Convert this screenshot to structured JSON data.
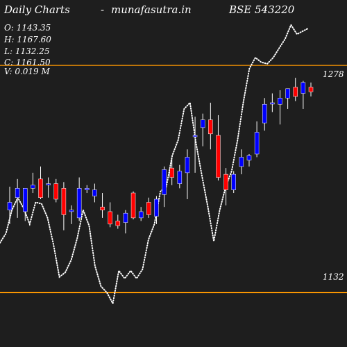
{
  "header": {
    "title": "Daily Charts",
    "separator": "-",
    "site": "munafasutra.in",
    "symbol": "BSE 543220"
  },
  "ohlc": {
    "open": "O: 1143.35",
    "high": "H: 1167.60",
    "low": "L: 1132.25",
    "close": "C: 1161.50",
    "volume": "V: 0.019 M"
  },
  "chart_data": {
    "type": "candlestick",
    "ylim": [
      1097,
      1320
    ],
    "levels": [
      {
        "value": 1278,
        "label": "1278"
      },
      {
        "value": 1132,
        "label": "1132"
      }
    ],
    "colors": {
      "up": "#0000ff",
      "down": "#ff0000",
      "wick": "#ffffff",
      "level": "#ff9900",
      "overlay": "#ffffff",
      "background": "#1e1e1e"
    },
    "candles": [
      {
        "o": 1185,
        "h": 1200,
        "l": 1176,
        "c": 1190
      },
      {
        "o": 1193,
        "h": 1205,
        "l": 1180,
        "c": 1199
      },
      {
        "o": 1184,
        "h": 1198,
        "l": 1178,
        "c": 1199
      },
      {
        "o": 1199,
        "h": 1209,
        "l": 1196,
        "c": 1201
      },
      {
        "o": 1205,
        "h": 1213,
        "l": 1192,
        "c": 1193
      },
      {
        "o": 1202,
        "h": 1206,
        "l": 1193,
        "c": 1202
      },
      {
        "o": 1202,
        "h": 1205,
        "l": 1190,
        "c": 1192
      },
      {
        "o": 1199,
        "h": 1203,
        "l": 1172,
        "c": 1182
      },
      {
        "o": 1184,
        "h": 1188,
        "l": 1176,
        "c": 1185
      },
      {
        "o": 1180,
        "h": 1206,
        "l": 1178,
        "c": 1199
      },
      {
        "o": 1198,
        "h": 1201,
        "l": 1196,
        "c": 1199
      },
      {
        "o": 1194,
        "h": 1202,
        "l": 1190,
        "c": 1198
      },
      {
        "o": 1187,
        "h": 1196,
        "l": 1180,
        "c": 1185
      },
      {
        "o": 1184,
        "h": 1190,
        "l": 1174,
        "c": 1176
      },
      {
        "o": 1178,
        "h": 1182,
        "l": 1173,
        "c": 1175
      },
      {
        "o": 1177,
        "h": 1185,
        "l": 1170,
        "c": 1183
      },
      {
        "o": 1196,
        "h": 1197,
        "l": 1179,
        "c": 1180
      },
      {
        "o": 1180,
        "h": 1187,
        "l": 1178,
        "c": 1184
      },
      {
        "o": 1190,
        "h": 1193,
        "l": 1180,
        "c": 1182
      },
      {
        "o": 1181,
        "h": 1194,
        "l": 1176,
        "c": 1192
      },
      {
        "o": 1195,
        "h": 1213,
        "l": 1187,
        "c": 1211
      },
      {
        "o": 1212,
        "h": 1218,
        "l": 1201,
        "c": 1206
      },
      {
        "o": 1202,
        "h": 1214,
        "l": 1199,
        "c": 1210
      },
      {
        "o": 1209,
        "h": 1224,
        "l": 1192,
        "c": 1219
      },
      {
        "o": 1233,
        "h": 1245,
        "l": 1209,
        "c": 1233
      },
      {
        "o": 1238,
        "h": 1247,
        "l": 1226,
        "c": 1243
      },
      {
        "o": 1243,
        "h": 1254,
        "l": 1224,
        "c": 1234
      },
      {
        "o": 1233,
        "h": 1246,
        "l": 1204,
        "c": 1206
      },
      {
        "o": 1208,
        "h": 1212,
        "l": 1188,
        "c": 1198
      },
      {
        "o": 1198,
        "h": 1210,
        "l": 1196,
        "c": 1208
      },
      {
        "o": 1213,
        "h": 1224,
        "l": 1208,
        "c": 1219
      },
      {
        "o": 1217,
        "h": 1221,
        "l": 1213,
        "c": 1220
      },
      {
        "o": 1221,
        "h": 1242,
        "l": 1219,
        "c": 1235
      },
      {
        "o": 1241,
        "h": 1257,
        "l": 1236,
        "c": 1253
      },
      {
        "o": 1254,
        "h": 1260,
        "l": 1248,
        "c": 1254
      },
      {
        "o": 1253,
        "h": 1262,
        "l": 1240,
        "c": 1257
      },
      {
        "o": 1257,
        "h": 1263,
        "l": 1250,
        "c": 1263
      },
      {
        "o": 1264,
        "h": 1270,
        "l": 1255,
        "c": 1258
      },
      {
        "o": 1260,
        "h": 1268,
        "l": 1250,
        "c": 1267
      },
      {
        "o": 1264,
        "h": 1267,
        "l": 1258,
        "c": 1261
      }
    ],
    "overlay": [
      1164,
      1170,
      1185,
      1193,
      1186,
      1176,
      1190,
      1189,
      1180,
      1163,
      1142,
      1145,
      1153,
      1167,
      1185,
      1175,
      1149,
      1136,
      1132,
      1125,
      1146,
      1141,
      1146,
      1141,
      1147,
      1166,
      1176,
      1197,
      1200,
      1220,
      1230,
      1250,
      1254,
      1228,
      1207,
      1187,
      1165,
      1185,
      1200,
      1210,
      1230,
      1255,
      1276,
      1283,
      1280,
      1279,
      1283,
      1289,
      1295,
      1304,
      1298,
      1300,
      1302
    ],
    "overlay_x_range": [
      0,
      445
    ]
  }
}
